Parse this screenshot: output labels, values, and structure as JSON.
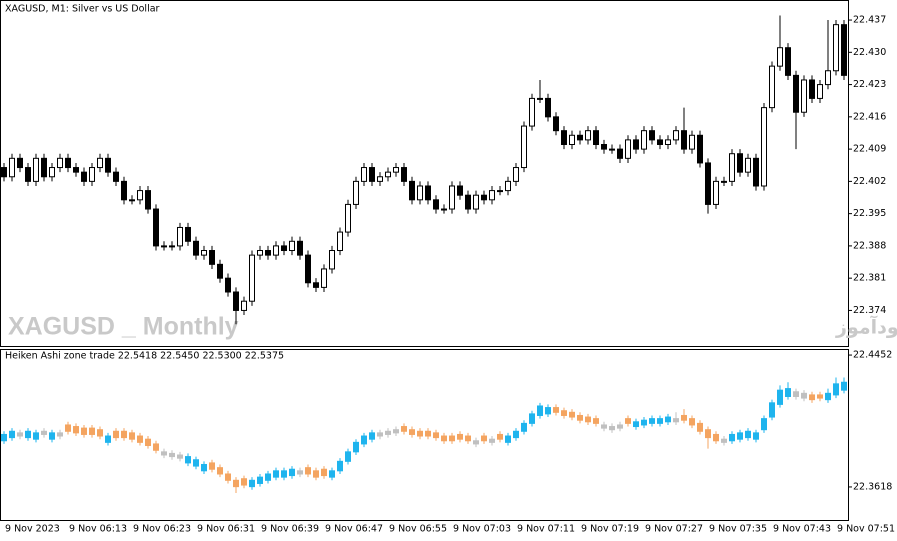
{
  "chart_data": [
    {
      "type": "candlestick",
      "title": "XAGUSD, M1:  Silver vs US Dollar",
      "watermark": "XAGUSD _ Monthly",
      "annotation": "انتشار در سایت سودآموز",
      "categories": [
        "9 Nov 2023",
        null,
        null,
        null,
        null,
        null,
        null,
        null,
        "9 Nov 06:13",
        null,
        null,
        null,
        null,
        null,
        null,
        null,
        "9 Nov 06:23",
        null,
        null,
        null,
        null,
        null,
        null,
        null,
        "9 Nov 06:31",
        null,
        null,
        null,
        null,
        null,
        null,
        null,
        "9 Nov 06:39",
        null,
        null,
        null,
        null,
        null,
        null,
        null,
        "9 Nov 06:47",
        null,
        null,
        null,
        null,
        null,
        null,
        null,
        "9 Nov 06:55",
        null,
        null,
        null,
        null,
        null,
        null,
        null,
        "9 Nov 07:03",
        null,
        null,
        null,
        null,
        null,
        null,
        null,
        "9 Nov 07:11",
        null,
        null,
        null,
        null,
        null,
        null,
        null,
        "9 Nov 07:19",
        null,
        null,
        null,
        null,
        null,
        null,
        null,
        "9 Nov 07:27",
        null,
        null,
        null,
        null,
        null,
        null,
        null,
        "9 Nov 07:35",
        null,
        null,
        null,
        null,
        null,
        null,
        null,
        "9 Nov 07:43",
        null,
        null,
        null,
        null,
        null,
        null,
        null,
        "9 Nov 07:51",
        null
      ],
      "open": [
        22.405,
        22.403,
        22.407,
        22.405,
        22.402,
        22.407,
        22.403,
        22.405,
        22.407,
        22.405,
        22.404,
        22.402,
        22.405,
        22.407,
        22.404,
        22.402,
        22.398,
        22.398,
        22.4,
        22.396,
        22.388,
        22.388,
        22.388,
        22.392,
        22.389,
        22.386,
        22.387,
        22.384,
        22.381,
        22.378,
        22.374,
        22.376,
        22.386,
        22.387,
        22.386,
        22.388,
        22.387,
        22.389,
        22.386,
        22.38,
        22.379,
        22.383,
        22.387,
        22.391,
        22.397,
        22.402,
        22.405,
        22.402,
        22.403,
        22.404,
        22.405,
        22.402,
        22.398,
        22.401,
        22.398,
        22.396,
        22.396,
        22.401,
        22.399,
        22.396,
        22.399,
        22.398,
        22.4,
        22.4,
        22.402,
        22.405,
        22.414,
        22.42,
        22.42,
        22.416,
        22.413,
        22.41,
        22.412,
        22.411,
        22.413,
        22.41,
        22.409,
        22.409,
        22.407,
        22.411,
        22.409,
        22.413,
        22.411,
        22.41,
        22.411,
        22.413,
        22.409,
        22.412,
        22.406,
        22.397,
        22.402,
        22.402,
        22.408,
        22.404,
        22.407,
        22.401,
        22.418,
        22.427,
        22.431,
        22.425,
        22.417,
        22.424,
        22.42,
        22.423,
        22.426,
        22.436
      ],
      "high": [
        22.406,
        22.408,
        22.408,
        22.406,
        22.408,
        22.408,
        22.406,
        22.408,
        22.408,
        22.406,
        22.405,
        22.406,
        22.408,
        22.408,
        22.405,
        22.403,
        22.399,
        22.401,
        22.401,
        22.397,
        22.389,
        22.389,
        22.393,
        22.393,
        22.39,
        22.388,
        22.388,
        22.385,
        22.382,
        22.379,
        22.377,
        22.387,
        22.388,
        22.388,
        22.389,
        22.389,
        22.39,
        22.39,
        22.387,
        22.381,
        22.384,
        22.388,
        22.392,
        22.398,
        22.403,
        22.406,
        22.406,
        22.404,
        22.405,
        22.406,
        22.406,
        22.403,
        22.402,
        22.402,
        22.399,
        22.397,
        22.402,
        22.402,
        22.4,
        22.4,
        22.4,
        22.401,
        22.401,
        22.403,
        22.406,
        22.415,
        22.421,
        22.424,
        22.421,
        22.417,
        22.414,
        22.413,
        22.413,
        22.414,
        22.414,
        22.411,
        22.41,
        22.41,
        22.412,
        22.412,
        22.414,
        22.414,
        22.412,
        22.412,
        22.414,
        22.418,
        22.413,
        22.413,
        22.407,
        22.403,
        22.403,
        22.409,
        22.409,
        22.408,
        22.408,
        22.419,
        22.428,
        22.438,
        22.432,
        22.426,
        22.425,
        22.425,
        22.424,
        22.437,
        22.437,
        22.437
      ],
      "low": [
        22.402,
        22.402,
        22.404,
        22.401,
        22.401,
        22.402,
        22.402,
        22.404,
        22.404,
        22.403,
        22.401,
        22.401,
        22.404,
        22.403,
        22.401,
        22.397,
        22.397,
        22.397,
        22.395,
        22.387,
        22.387,
        22.387,
        22.387,
        22.388,
        22.385,
        22.385,
        22.383,
        22.38,
        22.377,
        22.371,
        22.373,
        22.375,
        22.385,
        22.385,
        22.385,
        22.386,
        22.386,
        22.385,
        22.379,
        22.378,
        22.378,
        22.382,
        22.386,
        22.39,
        22.396,
        22.401,
        22.401,
        22.401,
        22.402,
        22.403,
        22.401,
        22.397,
        22.397,
        22.397,
        22.395,
        22.395,
        22.395,
        22.398,
        22.395,
        22.395,
        22.397,
        22.397,
        22.399,
        22.399,
        22.401,
        22.404,
        22.413,
        22.419,
        22.415,
        22.412,
        22.409,
        22.409,
        22.41,
        22.41,
        22.409,
        22.408,
        22.408,
        22.406,
        22.406,
        22.408,
        22.408,
        22.41,
        22.409,
        22.409,
        22.41,
        22.408,
        22.408,
        22.405,
        22.395,
        22.396,
        22.401,
        22.401,
        22.403,
        22.403,
        22.4,
        22.4,
        22.417,
        22.426,
        22.424,
        22.409,
        22.416,
        22.419,
        22.419,
        22.422,
        22.425,
        22.424
      ],
      "close": [
        22.403,
        22.407,
        22.405,
        22.402,
        22.407,
        22.403,
        22.405,
        22.407,
        22.405,
        22.404,
        22.402,
        22.405,
        22.407,
        22.404,
        22.402,
        22.398,
        22.398,
        22.4,
        22.396,
        22.388,
        22.388,
        22.388,
        22.392,
        22.389,
        22.386,
        22.387,
        22.384,
        22.381,
        22.378,
        22.374,
        22.376,
        22.386,
        22.387,
        22.386,
        22.388,
        22.387,
        22.389,
        22.386,
        22.38,
        22.379,
        22.383,
        22.387,
        22.391,
        22.397,
        22.402,
        22.405,
        22.402,
        22.403,
        22.404,
        22.405,
        22.402,
        22.398,
        22.401,
        22.398,
        22.396,
        22.396,
        22.401,
        22.399,
        22.396,
        22.399,
        22.398,
        22.4,
        22.4,
        22.402,
        22.405,
        22.414,
        22.42,
        22.42,
        22.416,
        22.413,
        22.41,
        22.412,
        22.411,
        22.413,
        22.41,
        22.409,
        22.409,
        22.407,
        22.411,
        22.409,
        22.413,
        22.411,
        22.41,
        22.411,
        22.413,
        22.409,
        22.412,
        22.406,
        22.397,
        22.402,
        22.402,
        22.408,
        22.404,
        22.407,
        22.401,
        22.418,
        22.427,
        22.431,
        22.425,
        22.417,
        22.424,
        22.42,
        22.423,
        22.426,
        22.436,
        22.425
      ],
      "up_color": "#ffffff",
      "down_color": "#000000",
      "edge_color": "#000000",
      "ylim": [
        22.3665,
        22.4407
      ],
      "yticks": [
        22.437,
        {
          "value": 22.43,
          "label": "22.430"
        },
        22.423,
        22.416,
        22.409,
        22.402,
        22.395,
        22.388,
        22.381,
        22.374
      ]
    },
    {
      "type": "candlestick",
      "title": "Heiken Ashi zone trade 22.5418 22.5450 22.5300 22.5375",
      "open": [
        22.391,
        22.393,
        22.394,
        22.393,
        22.392,
        22.395,
        22.392,
        22.394,
        22.401,
        22.4,
        22.399,
        22.399,
        22.398,
        22.39,
        22.397,
        22.397,
        22.396,
        22.394,
        22.392,
        22.389,
        22.382,
        22.381,
        22.38,
        22.377,
        22.375,
        22.372,
        22.377,
        22.374,
        22.37,
        22.366,
        22.367,
        22.362,
        22.364,
        22.366,
        22.368,
        22.368,
        22.369,
        22.37,
        22.374,
        22.372,
        22.373,
        22.368,
        22.372,
        22.378,
        22.384,
        22.389,
        22.392,
        22.394,
        22.395,
        22.396,
        22.4,
        22.398,
        22.397,
        22.397,
        22.396,
        22.394,
        22.394,
        22.395,
        22.394,
        22.389,
        22.394,
        22.39,
        22.395,
        22.39,
        22.393,
        22.397,
        22.402,
        22.407,
        22.408,
        22.412,
        22.41,
        22.409,
        22.407,
        22.406,
        22.405,
        22.399,
        22.398,
        22.399,
        22.405,
        22.4,
        22.401,
        22.402,
        22.402,
        22.403,
        22.403,
        22.407,
        22.405,
        22.402,
        22.398,
        22.395,
        22.39,
        22.391,
        22.392,
        22.393,
        22.392,
        22.398,
        22.406,
        22.414,
        22.419,
        22.422,
        22.421,
        22.42,
        22.42,
        22.417,
        22.42,
        22.423
      ],
      "high": [
        22.397,
        22.399,
        22.398,
        22.399,
        22.398,
        22.399,
        22.398,
        22.398,
        22.403,
        22.402,
        22.401,
        22.401,
        22.4,
        22.396,
        22.399,
        22.399,
        22.398,
        22.396,
        22.394,
        22.391,
        22.386,
        22.385,
        22.384,
        22.383,
        22.381,
        22.378,
        22.379,
        22.376,
        22.372,
        22.368,
        22.369,
        22.368,
        22.37,
        22.372,
        22.374,
        22.374,
        22.375,
        22.374,
        22.376,
        22.374,
        22.375,
        22.374,
        22.38,
        22.386,
        22.392,
        22.396,
        22.398,
        22.398,
        22.399,
        22.4,
        22.402,
        22.4,
        22.399,
        22.399,
        22.398,
        22.396,
        22.396,
        22.397,
        22.396,
        22.393,
        22.396,
        22.394,
        22.397,
        22.396,
        22.399,
        22.404,
        22.41,
        22.415,
        22.414,
        22.414,
        22.412,
        22.411,
        22.409,
        22.408,
        22.407,
        22.403,
        22.402,
        22.403,
        22.407,
        22.405,
        22.406,
        22.407,
        22.407,
        22.408,
        22.409,
        22.411,
        22.407,
        22.404,
        22.4,
        22.397,
        22.394,
        22.397,
        22.398,
        22.399,
        22.398,
        22.407,
        22.417,
        22.426,
        22.428,
        22.424,
        22.423,
        22.422,
        22.422,
        22.424,
        22.431,
        22.431
      ],
      "low": [
        22.389,
        22.391,
        22.392,
        22.391,
        22.39,
        22.393,
        22.39,
        22.392,
        22.395,
        22.394,
        22.393,
        22.393,
        22.392,
        22.388,
        22.391,
        22.391,
        22.39,
        22.388,
        22.386,
        22.383,
        22.38,
        22.379,
        22.378,
        22.375,
        22.373,
        22.37,
        22.371,
        22.368,
        22.364,
        22.358,
        22.361,
        22.36,
        22.362,
        22.364,
        22.366,
        22.366,
        22.367,
        22.368,
        22.368,
        22.366,
        22.367,
        22.366,
        22.37,
        22.376,
        22.382,
        22.387,
        22.39,
        22.392,
        22.393,
        22.394,
        22.395,
        22.393,
        22.392,
        22.392,
        22.391,
        22.389,
        22.389,
        22.39,
        22.389,
        22.387,
        22.389,
        22.388,
        22.39,
        22.388,
        22.391,
        22.395,
        22.4,
        22.405,
        22.406,
        22.407,
        22.405,
        22.404,
        22.402,
        22.401,
        22.4,
        22.397,
        22.396,
        22.397,
        22.4,
        22.398,
        22.399,
        22.4,
        22.4,
        22.401,
        22.401,
        22.402,
        22.399,
        22.395,
        22.386,
        22.389,
        22.388,
        22.389,
        22.39,
        22.391,
        22.39,
        22.396,
        22.404,
        22.412,
        22.417,
        22.417,
        22.416,
        22.415,
        22.416,
        22.415,
        22.418,
        22.421
      ],
      "close": [
        22.395,
        22.397,
        22.396,
        22.397,
        22.396,
        22.397,
        22.396,
        22.396,
        22.397,
        22.396,
        22.395,
        22.395,
        22.394,
        22.394,
        22.393,
        22.393,
        22.392,
        22.39,
        22.388,
        22.385,
        22.384,
        22.383,
        22.382,
        22.381,
        22.379,
        22.376,
        22.373,
        22.37,
        22.366,
        22.362,
        22.363,
        22.366,
        22.368,
        22.37,
        22.372,
        22.372,
        22.373,
        22.372,
        22.37,
        22.368,
        22.369,
        22.372,
        22.378,
        22.384,
        22.39,
        22.394,
        22.396,
        22.396,
        22.397,
        22.398,
        22.397,
        22.395,
        22.394,
        22.394,
        22.393,
        22.391,
        22.391,
        22.392,
        22.391,
        22.391,
        22.391,
        22.392,
        22.392,
        22.394,
        22.397,
        22.402,
        22.408,
        22.413,
        22.412,
        22.409,
        22.407,
        22.406,
        22.404,
        22.403,
        22.402,
        22.401,
        22.4,
        22.401,
        22.402,
        22.403,
        22.404,
        22.405,
        22.405,
        22.406,
        22.405,
        22.404,
        22.401,
        22.397,
        22.393,
        22.391,
        22.392,
        22.395,
        22.396,
        22.397,
        22.396,
        22.405,
        22.415,
        22.423,
        22.424,
        22.419,
        22.418,
        22.417,
        22.418,
        22.421,
        22.427,
        22.428
      ],
      "colors": [
        "#1eb4ee",
        "#1eb4ee",
        "#c0c0c0",
        "#1eb4ee",
        "#1eb4ee",
        "#c0c0c0",
        "#1eb4ee",
        "#c0c0c0",
        "#f4a460",
        "#f4a460",
        "#f4a460",
        "#f4a460",
        "#f4a460",
        "#1eb4ee",
        "#f4a460",
        "#f4a460",
        "#f4a460",
        "#f4a460",
        "#f4a460",
        "#f4a460",
        "#c0c0c0",
        "#c0c0c0",
        "#c0c0c0",
        "#1eb4ee",
        "#1eb4ee",
        "#1eb4ee",
        "#f4a460",
        "#f4a460",
        "#f4a460",
        "#f4a460",
        "#f4a460",
        "#1eb4ee",
        "#1eb4ee",
        "#1eb4ee",
        "#1eb4ee",
        "#1eb4ee",
        "#1eb4ee",
        "#c0c0c0",
        "#f4a460",
        "#f4a460",
        "#f4a460",
        "#1eb4ee",
        "#1eb4ee",
        "#1eb4ee",
        "#1eb4ee",
        "#1eb4ee",
        "#1eb4ee",
        "#c0c0c0",
        "#c0c0c0",
        "#c0c0c0",
        "#f4a460",
        "#f4a460",
        "#f4a460",
        "#f4a460",
        "#f4a460",
        "#f4a460",
        "#f4a460",
        "#f4a460",
        "#f4a460",
        "#c0c0c0",
        "#f4a460",
        "#c0c0c0",
        "#f4a460",
        "#1eb4ee",
        "#1eb4ee",
        "#1eb4ee",
        "#1eb4ee",
        "#1eb4ee",
        "#1eb4ee",
        "#f4a460",
        "#f4a460",
        "#f4a460",
        "#f4a460",
        "#f4a460",
        "#f4a460",
        "#c0c0c0",
        "#c0c0c0",
        "#c0c0c0",
        "#f4a460",
        "#1eb4ee",
        "#1eb4ee",
        "#1eb4ee",
        "#1eb4ee",
        "#1eb4ee",
        "#c0c0c0",
        "#f4a460",
        "#f4a460",
        "#f4a460",
        "#f4a460",
        "#f4a460",
        "#c0c0c0",
        "#1eb4ee",
        "#1eb4ee",
        "#1eb4ee",
        "#1eb4ee",
        "#1eb4ee",
        "#1eb4ee",
        "#1eb4ee",
        "#1eb4ee",
        "#c0c0c0",
        "#c0c0c0",
        "#f4a460",
        "#f4a460",
        "#1eb4ee",
        "#1eb4ee",
        "#1eb4ee"
      ],
      "ylim": [
        22.3409,
        22.4484
      ],
      "yticks": [
        22.4452,
        22.3618
      ]
    }
  ]
}
